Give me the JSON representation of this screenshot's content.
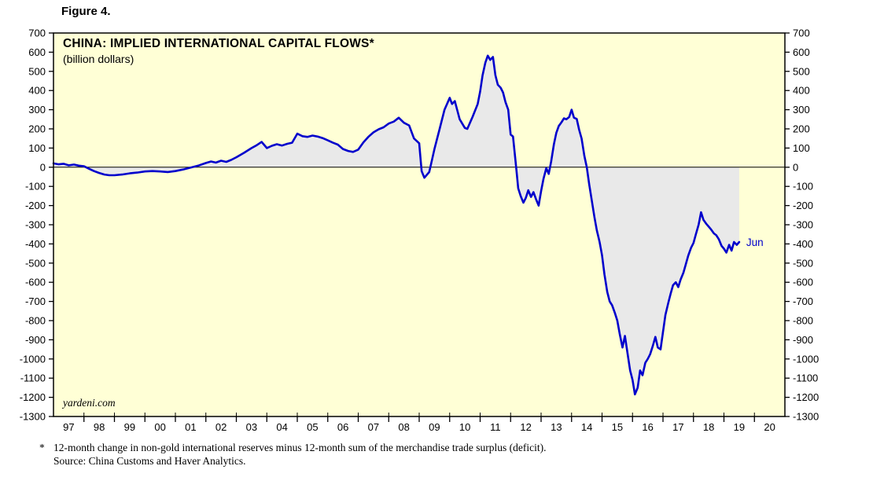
{
  "figure_label": "Figure 4.",
  "title": "CHINA: IMPLIED INTERNATIONAL CAPITAL FLOWS*",
  "subtitle": "(billion dollars)",
  "watermark": "yardeni.com",
  "last_point_label": "Jun",
  "footnote": {
    "marker": "*",
    "line1": "12-month change in non-gold international reserves minus 12-month sum of the merchandise trade surplus (deficit).",
    "line2": "Source: China Customs and Haver Analytics."
  },
  "colors": {
    "plot_bg": "#FFFFD6",
    "fill": "#E9E9E9",
    "line": "#0000CC",
    "frame": "#000000",
    "tick_text": "#000000",
    "jun_label": "#0000CC"
  },
  "chart_data": {
    "type": "line",
    "title": "CHINA: IMPLIED INTERNATIONAL CAPITAL FLOWS*",
    "ylabel": "billion dollars",
    "x_domain": [
      1997,
      2021
    ],
    "ylim": [
      -1300,
      700
    ],
    "y_tick_step": 100,
    "x_tick_labels": [
      "97",
      "98",
      "99",
      "00",
      "01",
      "02",
      "03",
      "04",
      "05",
      "06",
      "07",
      "08",
      "09",
      "10",
      "11",
      "12",
      "13",
      "14",
      "15",
      "16",
      "17",
      "18",
      "19",
      "20"
    ],
    "legend": "none",
    "grid": false,
    "series": [
      {
        "name": "Implied international capital flows (billion dollars)",
        "points": [
          [
            1997.0,
            20
          ],
          [
            1997.17,
            15
          ],
          [
            1997.33,
            18
          ],
          [
            1997.5,
            10
          ],
          [
            1997.67,
            14
          ],
          [
            1997.83,
            8
          ],
          [
            1998.0,
            5
          ],
          [
            1998.17,
            -8
          ],
          [
            1998.33,
            -20
          ],
          [
            1998.5,
            -30
          ],
          [
            1998.67,
            -38
          ],
          [
            1998.83,
            -42
          ],
          [
            1999.0,
            -42
          ],
          [
            1999.25,
            -38
          ],
          [
            1999.5,
            -32
          ],
          [
            1999.75,
            -28
          ],
          [
            2000.0,
            -22
          ],
          [
            2000.25,
            -20
          ],
          [
            2000.5,
            -22
          ],
          [
            2000.75,
            -25
          ],
          [
            2001.0,
            -20
          ],
          [
            2001.25,
            -12
          ],
          [
            2001.5,
            -2
          ],
          [
            2001.75,
            8
          ],
          [
            2002.0,
            22
          ],
          [
            2002.17,
            30
          ],
          [
            2002.33,
            24
          ],
          [
            2002.5,
            34
          ],
          [
            2002.67,
            28
          ],
          [
            2002.83,
            38
          ],
          [
            2003.0,
            52
          ],
          [
            2003.25,
            75
          ],
          [
            2003.5,
            100
          ],
          [
            2003.67,
            115
          ],
          [
            2003.83,
            132
          ],
          [
            2004.0,
            100
          ],
          [
            2004.17,
            112
          ],
          [
            2004.33,
            120
          ],
          [
            2004.5,
            113
          ],
          [
            2004.67,
            122
          ],
          [
            2004.83,
            128
          ],
          [
            2005.0,
            175
          ],
          [
            2005.17,
            162
          ],
          [
            2005.33,
            158
          ],
          [
            2005.5,
            165
          ],
          [
            2005.67,
            160
          ],
          [
            2005.83,
            152
          ],
          [
            2006.0,
            140
          ],
          [
            2006.17,
            128
          ],
          [
            2006.33,
            118
          ],
          [
            2006.5,
            95
          ],
          [
            2006.67,
            85
          ],
          [
            2006.83,
            80
          ],
          [
            2007.0,
            92
          ],
          [
            2007.17,
            130
          ],
          [
            2007.33,
            158
          ],
          [
            2007.5,
            182
          ],
          [
            2007.67,
            198
          ],
          [
            2007.83,
            208
          ],
          [
            2008.0,
            228
          ],
          [
            2008.17,
            238
          ],
          [
            2008.33,
            258
          ],
          [
            2008.5,
            232
          ],
          [
            2008.67,
            218
          ],
          [
            2008.83,
            150
          ],
          [
            2009.0,
            125
          ],
          [
            2009.08,
            -20
          ],
          [
            2009.17,
            -55
          ],
          [
            2009.33,
            -25
          ],
          [
            2009.5,
            95
          ],
          [
            2009.67,
            200
          ],
          [
            2009.83,
            300
          ],
          [
            2010.0,
            362
          ],
          [
            2010.08,
            330
          ],
          [
            2010.17,
            345
          ],
          [
            2010.33,
            250
          ],
          [
            2010.5,
            205
          ],
          [
            2010.58,
            200
          ],
          [
            2010.75,
            262
          ],
          [
            2010.92,
            330
          ],
          [
            2011.0,
            395
          ],
          [
            2011.08,
            480
          ],
          [
            2011.17,
            545
          ],
          [
            2011.25,
            582
          ],
          [
            2011.33,
            560
          ],
          [
            2011.42,
            575
          ],
          [
            2011.5,
            480
          ],
          [
            2011.58,
            430
          ],
          [
            2011.67,
            415
          ],
          [
            2011.75,
            390
          ],
          [
            2011.83,
            340
          ],
          [
            2011.92,
            300
          ],
          [
            2012.0,
            170
          ],
          [
            2012.08,
            160
          ],
          [
            2012.17,
            20
          ],
          [
            2012.25,
            -110
          ],
          [
            2012.33,
            -150
          ],
          [
            2012.42,
            -185
          ],
          [
            2012.5,
            -160
          ],
          [
            2012.58,
            -120
          ],
          [
            2012.67,
            -155
          ],
          [
            2012.75,
            -130
          ],
          [
            2012.83,
            -165
          ],
          [
            2012.92,
            -200
          ],
          [
            2013.0,
            -125
          ],
          [
            2013.08,
            -60
          ],
          [
            2013.17,
            -5
          ],
          [
            2013.25,
            -35
          ],
          [
            2013.33,
            30
          ],
          [
            2013.42,
            120
          ],
          [
            2013.5,
            180
          ],
          [
            2013.58,
            215
          ],
          [
            2013.67,
            235
          ],
          [
            2013.75,
            255
          ],
          [
            2013.83,
            250
          ],
          [
            2013.92,
            262
          ],
          [
            2014.0,
            300
          ],
          [
            2014.08,
            258
          ],
          [
            2014.17,
            252
          ],
          [
            2014.25,
            195
          ],
          [
            2014.33,
            150
          ],
          [
            2014.42,
            60
          ],
          [
            2014.5,
            0
          ],
          [
            2014.58,
            -90
          ],
          [
            2014.67,
            -180
          ],
          [
            2014.75,
            -260
          ],
          [
            2014.83,
            -330
          ],
          [
            2014.92,
            -390
          ],
          [
            2015.0,
            -460
          ],
          [
            2015.08,
            -560
          ],
          [
            2015.17,
            -650
          ],
          [
            2015.25,
            -700
          ],
          [
            2015.33,
            -720
          ],
          [
            2015.42,
            -760
          ],
          [
            2015.5,
            -800
          ],
          [
            2015.58,
            -870
          ],
          [
            2015.67,
            -940
          ],
          [
            2015.75,
            -880
          ],
          [
            2015.83,
            -965
          ],
          [
            2015.92,
            -1060
          ],
          [
            2016.0,
            -1110
          ],
          [
            2016.08,
            -1185
          ],
          [
            2016.17,
            -1150
          ],
          [
            2016.25,
            -1060
          ],
          [
            2016.33,
            -1085
          ],
          [
            2016.42,
            -1020
          ],
          [
            2016.5,
            -1000
          ],
          [
            2016.58,
            -975
          ],
          [
            2016.67,
            -930
          ],
          [
            2016.75,
            -885
          ],
          [
            2016.83,
            -940
          ],
          [
            2016.92,
            -950
          ],
          [
            2017.0,
            -860
          ],
          [
            2017.08,
            -770
          ],
          [
            2017.17,
            -710
          ],
          [
            2017.25,
            -660
          ],
          [
            2017.33,
            -615
          ],
          [
            2017.42,
            -600
          ],
          [
            2017.5,
            -625
          ],
          [
            2017.58,
            -585
          ],
          [
            2017.67,
            -550
          ],
          [
            2017.75,
            -505
          ],
          [
            2017.83,
            -460
          ],
          [
            2017.92,
            -420
          ],
          [
            2018.0,
            -395
          ],
          [
            2018.08,
            -350
          ],
          [
            2018.17,
            -300
          ],
          [
            2018.25,
            -235
          ],
          [
            2018.33,
            -275
          ],
          [
            2018.42,
            -295
          ],
          [
            2018.5,
            -310
          ],
          [
            2018.58,
            -325
          ],
          [
            2018.67,
            -345
          ],
          [
            2018.75,
            -355
          ],
          [
            2018.83,
            -375
          ],
          [
            2018.92,
            -410
          ],
          [
            2019.0,
            -425
          ],
          [
            2019.08,
            -445
          ],
          [
            2019.17,
            -405
          ],
          [
            2019.25,
            -435
          ],
          [
            2019.33,
            -390
          ],
          [
            2019.42,
            -405
          ],
          [
            2019.5,
            -390
          ]
        ]
      }
    ]
  }
}
